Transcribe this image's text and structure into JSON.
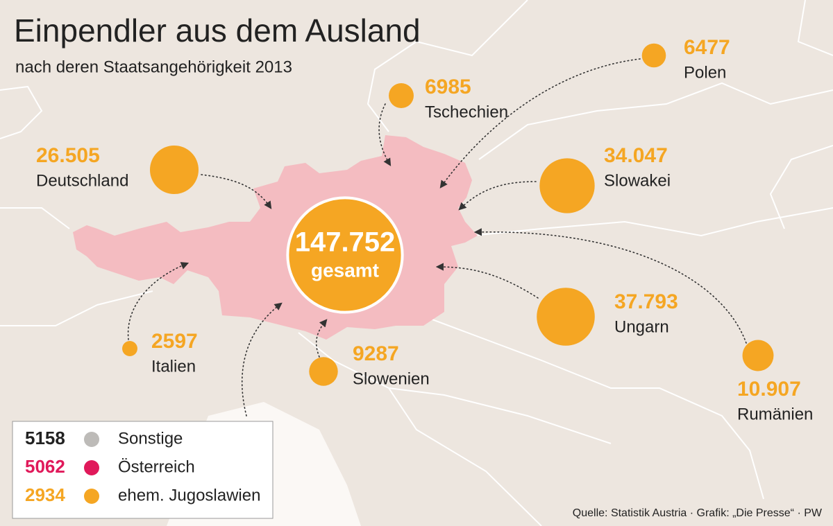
{
  "header": {
    "title": "Einpendler aus dem Ausland",
    "subtitle": "nach deren Staatsangehörigkeit 2013"
  },
  "total": {
    "value": 147752,
    "value_label": "147.752",
    "label": "gesamt"
  },
  "countries": [
    {
      "name": "Deutschland",
      "value": 26505,
      "value_label": "26.505"
    },
    {
      "name": "Tschechien",
      "value": 6985
    },
    {
      "name": "Polen",
      "value": 6477
    },
    {
      "name": "Slowakei",
      "value": 34047,
      "value_label": "34.047"
    },
    {
      "name": "Ungarn",
      "value": 37793,
      "value_label": "37.793"
    },
    {
      "name": "Rumänien",
      "value": 10907,
      "value_label": "10.907"
    },
    {
      "name": "Slowenien",
      "value": 9287
    },
    {
      "name": "Italien",
      "value": 2597
    }
  ],
  "legend": [
    {
      "value": 5158,
      "name": "Sonstige",
      "color": "#bdbbb8",
      "value_color": "#222222"
    },
    {
      "value": 5062,
      "name": "Österreich",
      "color": "#e0195a",
      "value_color": "#e0195a"
    },
    {
      "value": 2934,
      "name": "ehem. Jugoslawien",
      "color": "#f5a623",
      "value_color": "#f5a623"
    }
  ],
  "colors": {
    "bubble": "#f5a623",
    "austria": "#f4bcc1",
    "background": "#ede6df"
  },
  "source": "Quelle: Statistik Austria · Grafik: „Die Presse“ · PW"
}
